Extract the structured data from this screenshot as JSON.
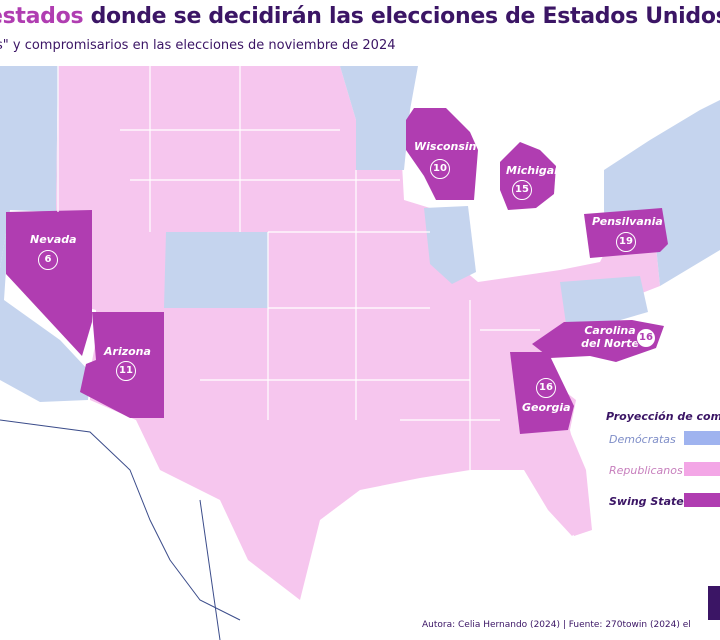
{
  "title": {
    "accent": "estados",
    "rest": "donde se decidirán las elecciones de Estados Unidos"
  },
  "subtitle": "s\" y compromisarios en las elecciones de noviembre de 2024",
  "colors": {
    "democrats": "#c5d4ee",
    "republicans": "#f6c6ee",
    "swing": "#b03db1",
    "title": "#3b1565",
    "water": "#ffffff"
  },
  "swing_states": [
    {
      "name": "Wisconsin",
      "votes": "10"
    },
    {
      "name": "Michigan",
      "votes": "15"
    },
    {
      "name": "Pensilvania",
      "votes": "19"
    },
    {
      "name": "Nevada",
      "votes": "6"
    },
    {
      "name": "Arizona",
      "votes": "11"
    },
    {
      "name": "Carolina del Norte",
      "votes": "16"
    },
    {
      "name": "Georgia",
      "votes": "16"
    }
  ],
  "legend": {
    "title": "Proyección de compr",
    "items": [
      {
        "label": "Demócratas",
        "color": "#9fb3ef",
        "text_color": "#7f8ec8"
      },
      {
        "label": "Republicanos",
        "color": "#f3a6e6",
        "text_color": "#c77fbd"
      },
      {
        "label": "Swing States",
        "color": "#b03db1",
        "text_color": "#3b1565"
      }
    ]
  },
  "footer": "Autora: Celia Hernando (2024) | Fuente: 270towin (2024) el"
}
